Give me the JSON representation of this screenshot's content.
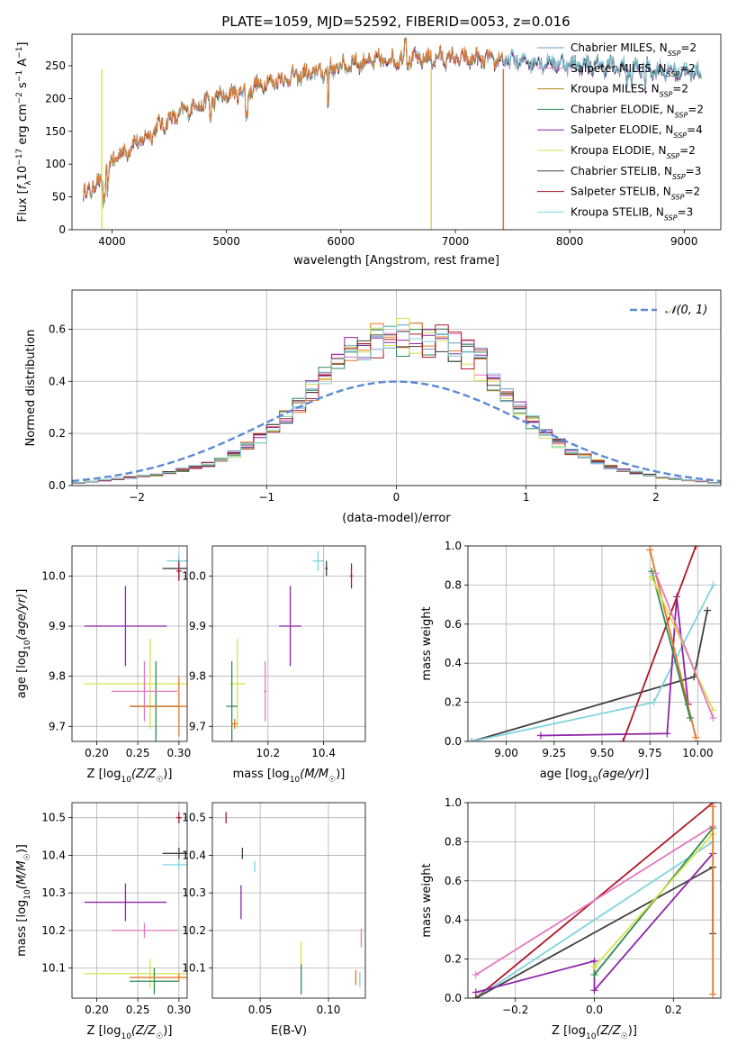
{
  "figure": {
    "title": "PLATE=1059, MJD=52592, FIBERID=0053, z=0.016"
  },
  "colors": {
    "Chabrier MILES": "#6b9ac4",
    "Salpeter MILES": "#e377c2",
    "Kroupa MILES": "#b8860b",
    "Chabrier ELODIE": "#2e8b57",
    "Salpeter ELODIE": "#8e24aa",
    "Kroupa ELODIE": "#d4e34a",
    "Chabrier STELIB": "#404040",
    "Salpeter STELIB": "#b2182b",
    "Kroupa STELIB": "#7fd3dd",
    "Kroupa MILES (orange)": "#e87722",
    "gaussian": "#5a8ad6"
  },
  "chart_data": [
    {
      "id": "spectrum",
      "type": "line",
      "title": "PLATE=1059, MJD=52592, FIBERID=0053, z=0.016",
      "xlabel": "wavelength [Angstrom, rest frame]",
      "ylabel": "Flux [f_λ 10^-17 erg cm^-2 s^-1 A^-1]",
      "xlim": [
        3650,
        9320
      ],
      "ylim": [
        0,
        298
      ],
      "xticks": [
        4000,
        5000,
        6000,
        7000,
        8000,
        9000
      ],
      "yticks": [
        0,
        50,
        100,
        150,
        200,
        250
      ],
      "legend_position": "right",
      "legend": [
        "Chabrier MILES, N_SSP=2",
        "Salpeter MILES, N_SSP=2",
        "Kroupa MILES, N_SSP=2",
        "Chabrier ELODIE, N_SSP=2",
        "Salpeter ELODIE, N_SSP=4",
        "Kroupa ELODIE, N_SSP=2",
        "Chabrier STELIB, N_SSP=3",
        "Salpeter STELIB, N_SSP=2",
        "Kroupa STELIB, N_SSP=3"
      ],
      "continuum": {
        "x": [
          3750,
          3800,
          3900,
          3950,
          4000,
          4100,
          4200,
          4300,
          4400,
          4500,
          4700,
          4900,
          5100,
          5200,
          5300,
          5500,
          5700,
          5900,
          6100,
          6300,
          6500,
          6700,
          6900,
          7100,
          7300,
          7500,
          7700,
          7900,
          8100,
          8300,
          8500,
          8700,
          8900,
          9100
        ],
        "y": [
          50,
          60,
          70,
          85,
          105,
          115,
          130,
          138,
          155,
          165,
          185,
          198,
          208,
          212,
          220,
          228,
          235,
          242,
          252,
          255,
          258,
          258,
          260,
          258,
          257,
          256,
          255,
          252,
          250,
          248,
          245,
          243,
          240,
          238
        ]
      },
      "cutoffs": [
        {
          "series": "Kroupa MILES",
          "x": 6790
        },
        {
          "series": "Kroupa ELODIE",
          "x": 6790
        },
        {
          "series": "Salpeter STELIB",
          "x": 7420
        },
        {
          "series": "Kroupa MILES",
          "x": 7420
        },
        {
          "series": "Kroupa ELODIE",
          "x": 3910
        }
      ]
    },
    {
      "id": "residuals",
      "type": "histogram",
      "xlabel": "(data-model)/error",
      "ylabel": "Normed distribution",
      "xlim": [
        -2.5,
        2.5
      ],
      "ylim": [
        0,
        0.75
      ],
      "xticks": [
        -2,
        -1,
        0,
        1,
        2
      ],
      "yticks": [
        0.0,
        0.2,
        0.4,
        0.6
      ],
      "grid": true,
      "legend_position": "top-right",
      "gaussian_label": "𝒩(0, 1)",
      "bin_width": 0.1,
      "profile": [
        0.01,
        0.015,
        0.02,
        0.025,
        0.03,
        0.035,
        0.04,
        0.05,
        0.06,
        0.07,
        0.08,
        0.1,
        0.12,
        0.15,
        0.18,
        0.21,
        0.26,
        0.3,
        0.36,
        0.42,
        0.47,
        0.5,
        0.53,
        0.55,
        0.57,
        0.56,
        0.57,
        0.56,
        0.55,
        0.53,
        0.5,
        0.46,
        0.4,
        0.34,
        0.29,
        0.24,
        0.2,
        0.16,
        0.13,
        0.11,
        0.09,
        0.07,
        0.06,
        0.05,
        0.04,
        0.03,
        0.025,
        0.02,
        0.015,
        0.01
      ]
    },
    {
      "id": "age_vs_Z",
      "type": "errorbar",
      "xlabel": "Z [log10(Z/Z☉)]",
      "ylabel": "age  [log10(age/yr)]",
      "xlim": [
        0.17,
        0.31
      ],
      "ylim": [
        9.67,
        10.06
      ],
      "xticks": [
        0.2,
        0.25,
        0.3
      ],
      "yticks": [
        9.7,
        9.8,
        9.9,
        10.0
      ],
      "points": [
        {
          "series": "Salpeter ELODIE",
          "x": 0.235,
          "y": 9.9,
          "xerr": 0.05,
          "yerr": 0.08
        },
        {
          "series": "Kroupa ELODIE",
          "x": 0.265,
          "y": 9.785,
          "xerr": 0.08,
          "yerr": 0.09
        },
        {
          "series": "Chabrier ELODIE",
          "x": 0.272,
          "y": 9.74,
          "xerr": 0.03,
          "yerr": 0.09
        },
        {
          "series": "Salpeter MILES",
          "x": 0.258,
          "y": 9.77,
          "xerr": 0.04,
          "yerr": 0.06
        },
        {
          "series": "Chabrier STELIB",
          "x": 0.3,
          "y": 10.015,
          "xerr": 0.02,
          "yerr": 0.02
        },
        {
          "series": "Kroupa STELIB",
          "x": 0.3,
          "y": 10.03,
          "xerr": 0.015,
          "yerr": 0.015
        },
        {
          "series": "Kroupa MILES (orange)",
          "x": 0.3,
          "y": 9.74,
          "xerr": 0.06,
          "yerr": 0.06
        },
        {
          "series": "Salpeter STELIB",
          "x": 0.3,
          "y": 10.01,
          "xerr": 0.003,
          "yerr": 0.02
        }
      ]
    },
    {
      "id": "age_vs_mass",
      "type": "errorbar",
      "xlabel": "mass [log10(M/M☉)]",
      "ylabel": "",
      "xlim": [
        10.0,
        10.55
      ],
      "ylim": [
        9.67,
        10.06
      ],
      "xticks": [
        10.2,
        10.4
      ],
      "yticks": [
        9.7,
        9.8,
        9.9,
        10.0
      ],
      "points": [
        {
          "series": "Salpeter ELODIE",
          "x": 10.28,
          "y": 9.9,
          "xerr": 0.04,
          "yerr": 0.08
        },
        {
          "series": "Kroupa ELODIE",
          "x": 10.09,
          "y": 9.785,
          "xerr": 0.03,
          "yerr": 0.09
        },
        {
          "series": "Chabrier ELODIE",
          "x": 10.07,
          "y": 9.74,
          "xerr": 0.02,
          "yerr": 0.09
        },
        {
          "series": "Salpeter MILES",
          "x": 10.19,
          "y": 9.77,
          "xerr": 0.005,
          "yerr": 0.06
        },
        {
          "series": "Kroupa MILES (orange)",
          "x": 10.08,
          "y": 9.705,
          "xerr": 0.01,
          "yerr": 0.01
        },
        {
          "series": "Chabrier STELIB",
          "x": 10.41,
          "y": 10.015,
          "xerr": 0.005,
          "yerr": 0.015
        },
        {
          "series": "Kroupa STELIB",
          "x": 10.38,
          "y": 10.03,
          "xerr": 0.02,
          "yerr": 0.02
        },
        {
          "series": "Salpeter STELIB",
          "x": 10.5,
          "y": 10.0,
          "xerr": 0.005,
          "yerr": 0.025
        }
      ]
    },
    {
      "id": "mass_weight_vs_age",
      "type": "line",
      "xlabel": "age  [log10(age/yr)]",
      "ylabel": "mass weight",
      "xlim": [
        8.8,
        10.12
      ],
      "ylim": [
        0,
        1.0
      ],
      "xticks": [
        9.0,
        9.25,
        9.5,
        9.75,
        10.0
      ],
      "yticks": [
        0.0,
        0.2,
        0.4,
        0.6,
        0.8,
        1.0
      ],
      "grid": true,
      "series": [
        {
          "series": "Chabrier STELIB",
          "x": [
            8.82,
            9.98,
            10.05
          ],
          "y": [
            0.0,
            0.33,
            0.67
          ]
        },
        {
          "series": "Kroupa STELIB",
          "x": [
            8.82,
            9.77,
            10.08
          ],
          "y": [
            0.0,
            0.2,
            0.8
          ]
        },
        {
          "series": "Salpeter ELODIE",
          "x": [
            9.18,
            9.84,
            9.89,
            9.95
          ],
          "y": [
            0.03,
            0.04,
            0.74,
            0.19
          ]
        },
        {
          "series": "Salpeter STELIB",
          "x": [
            9.61,
            9.99
          ],
          "y": [
            0.0,
            1.0
          ]
        },
        {
          "series": "Kroupa MILES (orange)",
          "x": [
            9.75,
            9.99
          ],
          "y": [
            0.98,
            0.02
          ]
        },
        {
          "series": "Chabrier ELODIE",
          "x": [
            9.76,
            9.96
          ],
          "y": [
            0.87,
            0.12
          ]
        },
        {
          "series": "Kroupa ELODIE",
          "x": [
            9.76,
            10.08
          ],
          "y": [
            0.84,
            0.16
          ]
        },
        {
          "series": "Salpeter MILES",
          "x": [
            9.78,
            10.08
          ],
          "y": [
            0.86,
            0.12
          ]
        }
      ]
    },
    {
      "id": "mass_vs_Z",
      "type": "errorbar",
      "xlabel": "Z [log10(Z/Z☉)]",
      "ylabel": "mass [log10(M/M☉)]",
      "xlim": [
        0.17,
        0.31
      ],
      "ylim": [
        10.02,
        10.54
      ],
      "xticks": [
        0.2,
        0.25,
        0.3
      ],
      "yticks": [
        10.1,
        10.2,
        10.3,
        10.4,
        10.5
      ],
      "points": [
        {
          "series": "Salpeter ELODIE",
          "x": 0.235,
          "y": 10.275,
          "xerr": 0.05,
          "yerr": 0.05
        },
        {
          "series": "Salpeter MILES",
          "x": 0.258,
          "y": 10.2,
          "xerr": 0.04,
          "yerr": 0.02
        },
        {
          "series": "Kroupa ELODIE",
          "x": 0.265,
          "y": 10.085,
          "xerr": 0.08,
          "yerr": 0.04
        },
        {
          "series": "Chabrier ELODIE",
          "x": 0.27,
          "y": 10.065,
          "xerr": 0.03,
          "yerr": 0.035
        },
        {
          "series": "Kroupa MILES (orange)",
          "x": 0.3,
          "y": 10.075,
          "xerr": 0.06,
          "yerr": 0.01
        },
        {
          "series": "Chabrier STELIB",
          "x": 0.3,
          "y": 10.405,
          "xerr": 0.02,
          "yerr": 0.015
        },
        {
          "series": "Kroupa STELIB",
          "x": 0.3,
          "y": 10.375,
          "xerr": 0.02,
          "yerr": 0.01
        },
        {
          "series": "Salpeter STELIB",
          "x": 0.3,
          "y": 10.5,
          "xerr": 0.003,
          "yerr": 0.015
        }
      ]
    },
    {
      "id": "mass_vs_ebv",
      "type": "errorbar",
      "xlabel": "E(B-V)",
      "ylabel": "",
      "xlim": [
        0.015,
        0.127
      ],
      "ylim": [
        10.02,
        10.54
      ],
      "xticks": [
        0.05,
        0.1
      ],
      "yticks": [
        10.1,
        10.2,
        10.3,
        10.4,
        10.5
      ],
      "points": [
        {
          "series": "Salpeter STELIB",
          "x": 0.025,
          "y": 10.5,
          "xerr": 0.0,
          "yerr": 0.015
        },
        {
          "series": "Chabrier STELIB",
          "x": 0.037,
          "y": 10.405,
          "xerr": 0.0,
          "yerr": 0.015
        },
        {
          "series": "Salpeter ELODIE",
          "x": 0.036,
          "y": 10.275,
          "xerr": 0.0,
          "yerr": 0.045
        },
        {
          "series": "Kroupa STELIB",
          "x": 0.046,
          "y": 10.37,
          "xerr": 0.0,
          "yerr": 0.015
        },
        {
          "series": "Kroupa ELODIE",
          "x": 0.08,
          "y": 10.1,
          "xerr": 0.0,
          "yerr": 0.07
        },
        {
          "series": "Chabrier ELODIE",
          "x": 0.08,
          "y": 10.07,
          "xerr": 0.0,
          "yerr": 0.04
        },
        {
          "series": "Salpeter MILES",
          "x": 0.124,
          "y": 10.18,
          "xerr": 0.0,
          "yerr": 0.025
        },
        {
          "series": "Kroupa MILES (orange)",
          "x": 0.12,
          "y": 10.075,
          "xerr": 0.0,
          "yerr": 0.02
        },
        {
          "series": "Kroupa STELIB",
          "x": 0.123,
          "y": 10.07,
          "xerr": 0.0,
          "yerr": 0.02
        }
      ]
    },
    {
      "id": "mass_weight_vs_Z",
      "type": "line",
      "xlabel": "Z [log10(Z/Z☉)]",
      "ylabel": "mass weight",
      "xlim": [
        -0.32,
        0.32
      ],
      "ylim": [
        0,
        1.0
      ],
      "xticks": [
        -0.2,
        0.0,
        0.2
      ],
      "yticks": [
        0.0,
        0.2,
        0.4,
        0.6,
        0.8,
        1.0
      ],
      "grid": true,
      "series": [
        {
          "series": "Salpeter STELIB",
          "x": [
            -0.3,
            0.3
          ],
          "y": [
            0.0,
            1.0
          ]
        },
        {
          "series": "Salpeter MILES",
          "x": [
            -0.3,
            0.3
          ],
          "y": [
            0.12,
            0.88
          ]
        },
        {
          "series": "Kroupa STELIB",
          "x": [
            -0.3,
            0.3
          ],
          "y": [
            0.0,
            0.8
          ]
        },
        {
          "series": "Chabrier STELIB",
          "x": [
            -0.3,
            0.3,
            0.3
          ],
          "y": [
            0.0,
            0.67,
            0.33
          ]
        },
        {
          "series": "Salpeter ELODIE",
          "x": [
            -0.3,
            0.0,
            0.0,
            0.3
          ],
          "y": [
            0.03,
            0.19,
            0.04,
            0.74
          ]
        },
        {
          "series": "Chabrier ELODIE",
          "x": [
            0.0,
            0.3
          ],
          "y": [
            0.12,
            0.87
          ]
        },
        {
          "series": "Kroupa ELODIE",
          "x": [
            0.0,
            0.3
          ],
          "y": [
            0.16,
            0.84
          ]
        },
        {
          "series": "Kroupa MILES (orange)",
          "x": [
            0.3,
            0.3
          ],
          "y": [
            0.98,
            0.02
          ]
        }
      ]
    }
  ]
}
